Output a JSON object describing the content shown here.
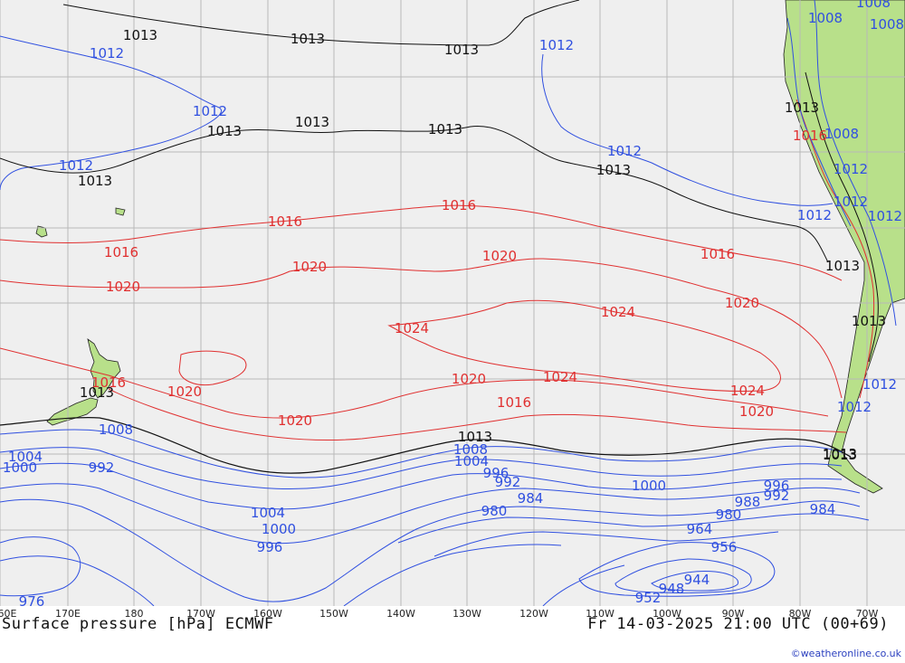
{
  "map": {
    "title": "Surface pressure [hPa] ECMWF",
    "valid_time": "Fr 14-03-2025 21:00 UTC (00+69)",
    "credit": "©weatheronline.co.uk",
    "colors": {
      "ocean": "#efefef",
      "land": "#b8e08a",
      "grid": "#b8b8b8",
      "isobar_low": "#3050e0",
      "isobar_ref": "#111111",
      "isobar_high": "#e03030"
    },
    "longitude_labels": [
      "60E",
      "170E",
      "180",
      "170W",
      "160W",
      "150W",
      "140W",
      "130W",
      "120W",
      "110W",
      "100W",
      "90W",
      "80W",
      "70W"
    ],
    "isobar_labels": [
      {
        "text": "1013",
        "color": "black"
      },
      {
        "text": "1013",
        "color": "black"
      },
      {
        "text": "1013",
        "color": "black"
      },
      {
        "text": "1012",
        "color": "blue"
      },
      {
        "text": "1012",
        "color": "blue"
      },
      {
        "text": "1012",
        "color": "blue"
      },
      {
        "text": "1013",
        "color": "black"
      },
      {
        "text": "1013",
        "color": "black"
      },
      {
        "text": "1013",
        "color": "black"
      },
      {
        "text": "1012",
        "color": "blue"
      },
      {
        "text": "1013",
        "color": "black"
      },
      {
        "text": "1013",
        "color": "black"
      },
      {
        "text": "1012",
        "color": "blue"
      },
      {
        "text": "1012",
        "color": "blue"
      },
      {
        "text": "1016",
        "color": "red"
      },
      {
        "text": "1016",
        "color": "red"
      },
      {
        "text": "1016",
        "color": "red"
      },
      {
        "text": "1016",
        "color": "red"
      },
      {
        "text": "1020",
        "color": "red"
      },
      {
        "text": "1020",
        "color": "red"
      },
      {
        "text": "1020",
        "color": "red"
      },
      {
        "text": "1020",
        "color": "red"
      },
      {
        "text": "1024",
        "color": "red"
      },
      {
        "text": "1024",
        "color": "red"
      },
      {
        "text": "1024",
        "color": "red"
      },
      {
        "text": "1024",
        "color": "red"
      },
      {
        "text": "1020",
        "color": "red"
      },
      {
        "text": "1020",
        "color": "red"
      },
      {
        "text": "1020",
        "color": "red"
      },
      {
        "text": "1020",
        "color": "red"
      },
      {
        "text": "1016",
        "color": "red"
      },
      {
        "text": "1016",
        "color": "red"
      },
      {
        "text": "1013",
        "color": "black"
      },
      {
        "text": "1013",
        "color": "black"
      },
      {
        "text": "1013",
        "color": "black"
      },
      {
        "text": "1008",
        "color": "blue"
      },
      {
        "text": "1008",
        "color": "blue"
      },
      {
        "text": "1004",
        "color": "blue"
      },
      {
        "text": "1004",
        "color": "blue"
      },
      {
        "text": "1000",
        "color": "blue"
      },
      {
        "text": "992",
        "color": "blue"
      },
      {
        "text": "996",
        "color": "blue"
      },
      {
        "text": "992",
        "color": "blue"
      },
      {
        "text": "984",
        "color": "blue"
      },
      {
        "text": "980",
        "color": "blue"
      },
      {
        "text": "1000",
        "color": "blue"
      },
      {
        "text": "996",
        "color": "blue"
      },
      {
        "text": "992",
        "color": "blue"
      },
      {
        "text": "988",
        "color": "blue"
      },
      {
        "text": "984",
        "color": "blue"
      },
      {
        "text": "980",
        "color": "blue"
      },
      {
        "text": "1004",
        "color": "blue"
      },
      {
        "text": "1000",
        "color": "blue"
      },
      {
        "text": "996",
        "color": "blue"
      },
      {
        "text": "976",
        "color": "blue"
      },
      {
        "text": "964",
        "color": "blue"
      },
      {
        "text": "956",
        "color": "blue"
      },
      {
        "text": "944",
        "color": "blue"
      },
      {
        "text": "948",
        "color": "blue"
      },
      {
        "text": "952",
        "color": "blue"
      },
      {
        "text": "1008",
        "color": "blue"
      },
      {
        "text": "1008",
        "color": "blue"
      },
      {
        "text": "1008",
        "color": "blue"
      },
      {
        "text": "1013",
        "color": "black"
      },
      {
        "text": "1016",
        "color": "red"
      },
      {
        "text": "1008",
        "color": "blue"
      },
      {
        "text": "1012",
        "color": "blue"
      },
      {
        "text": "1012",
        "color": "blue"
      },
      {
        "text": "1012",
        "color": "blue"
      },
      {
        "text": "1012",
        "color": "blue"
      },
      {
        "text": "1012",
        "color": "blue"
      },
      {
        "text": "1013",
        "color": "black"
      },
      {
        "text": "1013",
        "color": "black"
      },
      {
        "text": "1013",
        "color": "black"
      }
    ]
  }
}
